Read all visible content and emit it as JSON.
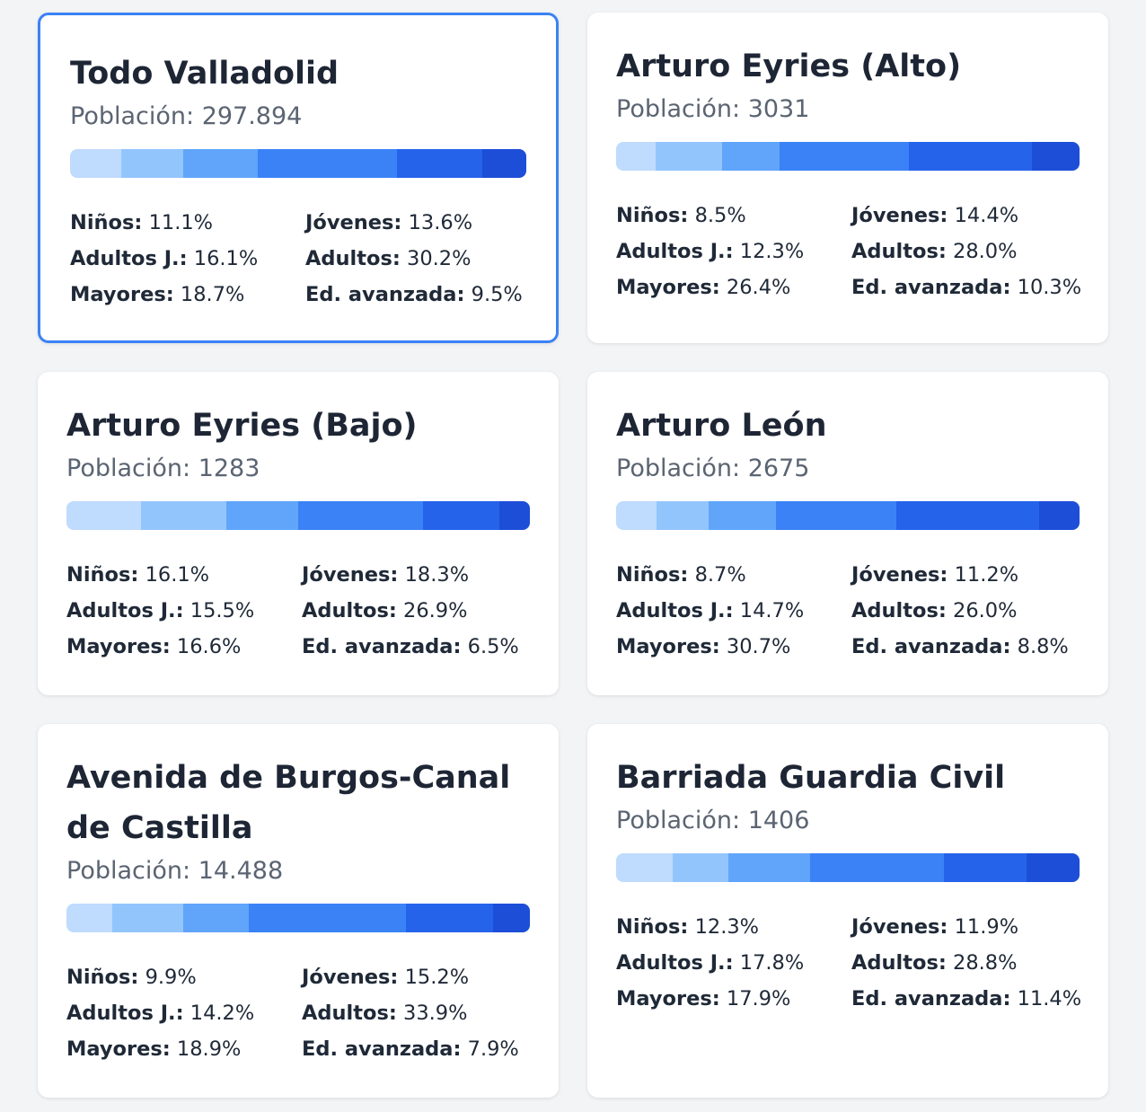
{
  "colors": [
    "#bfdbfe",
    "#93c5fd",
    "#60a5fa",
    "#3b82f6",
    "#2563eb",
    "#1d4ed8"
  ],
  "labels": {
    "population_prefix": "Población: ",
    "ninos": "Niños:",
    "jovenes": "Jóvenes:",
    "adultos_j": "Adultos J.:",
    "adultos": "Adultos:",
    "mayores": "Mayores:",
    "ed_avanzada": "Ed. avanzada:"
  },
  "cards": [
    {
      "title": "Todo Valladolid",
      "population": "297.894",
      "selected": true,
      "values": [
        11.1,
        13.6,
        16.1,
        30.2,
        18.7,
        9.5
      ],
      "texts": {
        "ninos": "11.1%",
        "jovenes": "13.6%",
        "adultos_j": "16.1%",
        "adultos": "30.2%",
        "mayores": "18.7%",
        "ed_avanzada": "9.5%"
      }
    },
    {
      "title": "Arturo Eyries (Alto)",
      "population": "3031",
      "selected": false,
      "values": [
        8.5,
        14.4,
        12.3,
        28.0,
        26.4,
        10.3
      ],
      "texts": {
        "ninos": "8.5%",
        "jovenes": "14.4%",
        "adultos_j": "12.3%",
        "adultos": "28.0%",
        "mayores": "26.4%",
        "ed_avanzada": "10.3%"
      }
    },
    {
      "title": "Arturo Eyries (Bajo)",
      "population": "1283",
      "selected": false,
      "values": [
        16.1,
        18.3,
        15.5,
        26.9,
        16.6,
        6.5
      ],
      "texts": {
        "ninos": "16.1%",
        "jovenes": "18.3%",
        "adultos_j": "15.5%",
        "adultos": "26.9%",
        "mayores": "16.6%",
        "ed_avanzada": "6.5%"
      }
    },
    {
      "title": "Arturo León",
      "population": "2675",
      "selected": false,
      "values": [
        8.7,
        11.2,
        14.7,
        26.0,
        30.7,
        8.8
      ],
      "texts": {
        "ninos": "8.7%",
        "jovenes": "11.2%",
        "adultos_j": "14.7%",
        "adultos": "26.0%",
        "mayores": "30.7%",
        "ed_avanzada": "8.8%"
      }
    },
    {
      "title": "Avenida de Burgos-Canal de Castilla",
      "population": "14.488",
      "selected": false,
      "values": [
        9.9,
        15.2,
        14.2,
        33.9,
        18.9,
        7.9
      ],
      "texts": {
        "ninos": "9.9%",
        "jovenes": "15.2%",
        "adultos_j": "14.2%",
        "adultos": "33.9%",
        "mayores": "18.9%",
        "ed_avanzada": "7.9%"
      }
    },
    {
      "title": "Barriada Guardia Civil",
      "population": "1406",
      "selected": false,
      "values": [
        12.3,
        11.9,
        17.8,
        28.8,
        17.9,
        11.4
      ],
      "texts": {
        "ninos": "12.3%",
        "jovenes": "11.9%",
        "adultos_j": "17.8%",
        "adultos": "28.8%",
        "mayores": "17.9%",
        "ed_avanzada": "11.4%"
      }
    }
  ]
}
